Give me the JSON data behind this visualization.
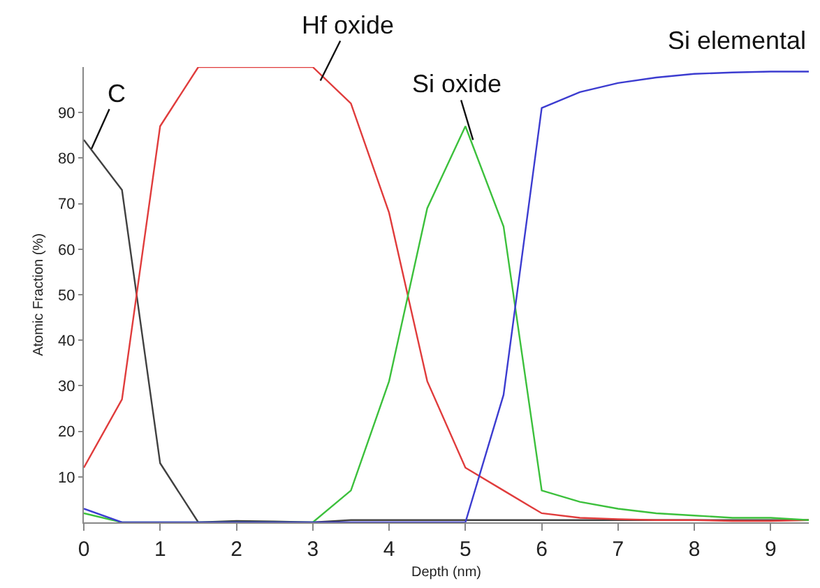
{
  "chart_data": {
    "type": "line",
    "xlabel": "Depth (nm)",
    "ylabel": "Atomic Fraction (%)",
    "x": [
      0,
      0.5,
      1,
      1.5,
      2,
      2.5,
      3,
      3.5,
      4,
      4.5,
      5,
      5.5,
      6,
      6.5,
      7,
      7.5,
      8,
      8.5,
      9,
      9.5
    ],
    "series": [
      {
        "color": "#404040",
        "values": [
          84,
          73,
          13,
          0,
          0.3,
          0.2,
          0,
          0.5,
          0.5,
          0.5,
          0.5,
          0.5,
          0.5,
          0.5,
          0.5,
          0.5,
          0.5,
          0.5,
          0.5,
          0.5
        ]
      },
      {
        "color": "#e03c3c",
        "values": [
          12,
          27,
          87,
          100,
          100,
          100,
          100,
          92,
          68,
          31,
          12,
          7,
          2,
          1,
          0.7,
          0.5,
          0.5,
          0.3,
          0.3,
          0.5
        ]
      },
      {
        "color": "#3cc03c",
        "values": [
          2,
          0,
          0,
          0,
          0,
          0,
          0,
          7,
          31,
          69,
          87,
          65,
          7,
          4.5,
          3,
          2,
          1.5,
          1,
          1,
          0.5
        ]
      },
      {
        "color": "#3c3cd0",
        "values": [
          3,
          0,
          0,
          0,
          0,
          0,
          0,
          0,
          0,
          0,
          0,
          28,
          91,
          94.5,
          96.5,
          97.7,
          98.5,
          98.8,
          99,
          99
        ]
      }
    ],
    "xlim": [
      0,
      9.5
    ],
    "ylim": [
      0,
      100
    ],
    "xticks": [
      0,
      1,
      2,
      3,
      4,
      5,
      6,
      7,
      8,
      9
    ],
    "yticks": [
      10,
      20,
      30,
      40,
      50,
      60,
      70,
      80,
      90
    ],
    "marker": "none",
    "line_style": "solid",
    "annotations": [
      {
        "text": "C",
        "x": 0.1,
        "y": 82
      },
      {
        "text": "Hf oxide",
        "x": 3.1,
        "y": 97
      },
      {
        "text": "Si oxide",
        "x": 5.1,
        "y": 84
      },
      "Si elemental"
    ]
  }
}
